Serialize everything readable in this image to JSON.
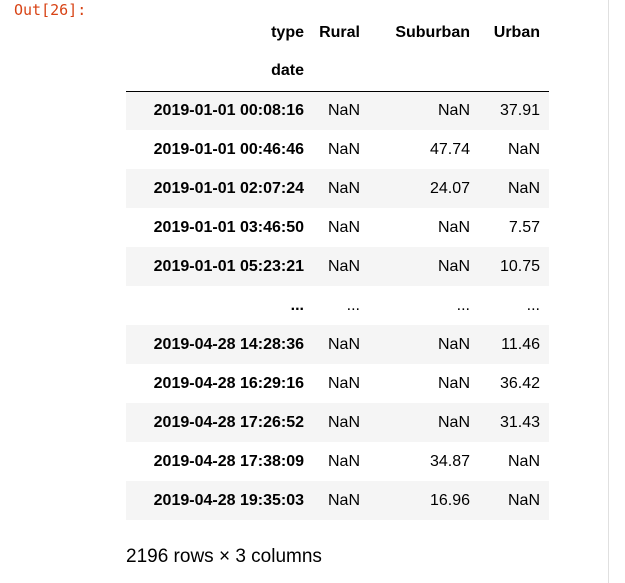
{
  "prompt": "Out[26]:",
  "table": {
    "columns_header_label": "type",
    "columns": [
      "Rural",
      "Suburban",
      "Urban"
    ],
    "index_name": "date",
    "rows": [
      {
        "index": "2019-01-01 00:08:16",
        "values": [
          "NaN",
          "NaN",
          "37.91"
        ]
      },
      {
        "index": "2019-01-01 00:46:46",
        "values": [
          "NaN",
          "47.74",
          "NaN"
        ]
      },
      {
        "index": "2019-01-01 02:07:24",
        "values": [
          "NaN",
          "24.07",
          "NaN"
        ]
      },
      {
        "index": "2019-01-01 03:46:50",
        "values": [
          "NaN",
          "NaN",
          "7.57"
        ]
      },
      {
        "index": "2019-01-01 05:23:21",
        "values": [
          "NaN",
          "NaN",
          "10.75"
        ]
      },
      {
        "index": "...",
        "values": [
          "...",
          "...",
          "..."
        ]
      },
      {
        "index": "2019-04-28 14:28:36",
        "values": [
          "NaN",
          "NaN",
          "11.46"
        ]
      },
      {
        "index": "2019-04-28 16:29:16",
        "values": [
          "NaN",
          "NaN",
          "36.42"
        ]
      },
      {
        "index": "2019-04-28 17:26:52",
        "values": [
          "NaN",
          "NaN",
          "31.43"
        ]
      },
      {
        "index": "2019-04-28 17:38:09",
        "values": [
          "NaN",
          "34.87",
          "NaN"
        ]
      },
      {
        "index": "2019-04-28 19:35:03",
        "values": [
          "NaN",
          "16.96",
          "NaN"
        ]
      }
    ]
  },
  "summary": "2196 rows × 3 columns"
}
